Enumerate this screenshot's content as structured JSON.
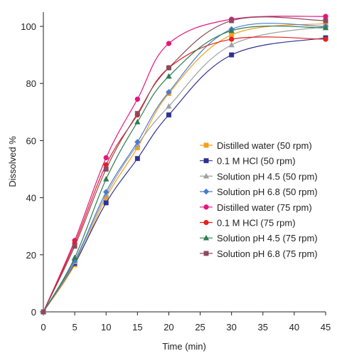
{
  "chart_data": {
    "type": "line",
    "title": "",
    "xlabel": "Time (min)",
    "ylabel": "Dissolved %",
    "xlim": [
      0,
      45
    ],
    "ylim": [
      0,
      105
    ],
    "x_ticks": [
      0,
      5,
      10,
      15,
      20,
      25,
      30,
      35,
      40,
      45
    ],
    "y_ticks": [
      0,
      20,
      40,
      60,
      80,
      100
    ],
    "grid": false,
    "legend_position": "right",
    "x": [
      0,
      5,
      10,
      15,
      20,
      30,
      45
    ],
    "series": [
      {
        "name": "Distilled water (50 rpm)",
        "color": "#f5a01a",
        "marker": "square",
        "values": [
          0,
          16.5,
          40,
          57.5,
          76.5,
          97,
          101
        ]
      },
      {
        "name": "0.1 M HCl (50 rpm)",
        "color": "#2e3192",
        "marker": "square",
        "values": [
          0,
          17,
          38.2,
          53.7,
          69,
          90,
          96
        ]
      },
      {
        "name": "Solution pH 4.5 (50 rpm)",
        "color": "#a0a0a0",
        "marker": "triangle",
        "values": [
          0,
          17.5,
          41,
          58.5,
          72,
          93.5,
          100
        ]
      },
      {
        "name": "Solution pH 6.8 (50 rpm)",
        "color": "#4a7bd0",
        "marker": "diamond",
        "values": [
          0,
          18,
          42,
          59.5,
          77,
          99,
          100
        ]
      },
      {
        "name": "Distilled water (75 rpm)",
        "color": "#e6157e",
        "marker": "circle",
        "values": [
          0,
          25,
          54,
          74.5,
          94,
          102.5,
          103.5
        ]
      },
      {
        "name": "0.1 M HCl (75 rpm)",
        "color": "#e42020",
        "marker": "circle",
        "values": [
          0,
          24,
          51.5,
          69,
          85.5,
          95.5,
          95.5
        ]
      },
      {
        "name": "Solution pH 4.5 (75 rpm)",
        "color": "#2e7d4f",
        "marker": "triangle",
        "values": [
          0,
          19,
          46.5,
          66.5,
          82.5,
          98.5,
          99.5
        ]
      },
      {
        "name": "Solution pH 6.8 (75 rpm)",
        "color": "#8c4a5c",
        "marker": "square",
        "values": [
          0,
          23,
          50,
          69.5,
          85.5,
          102,
          102
        ]
      }
    ]
  }
}
